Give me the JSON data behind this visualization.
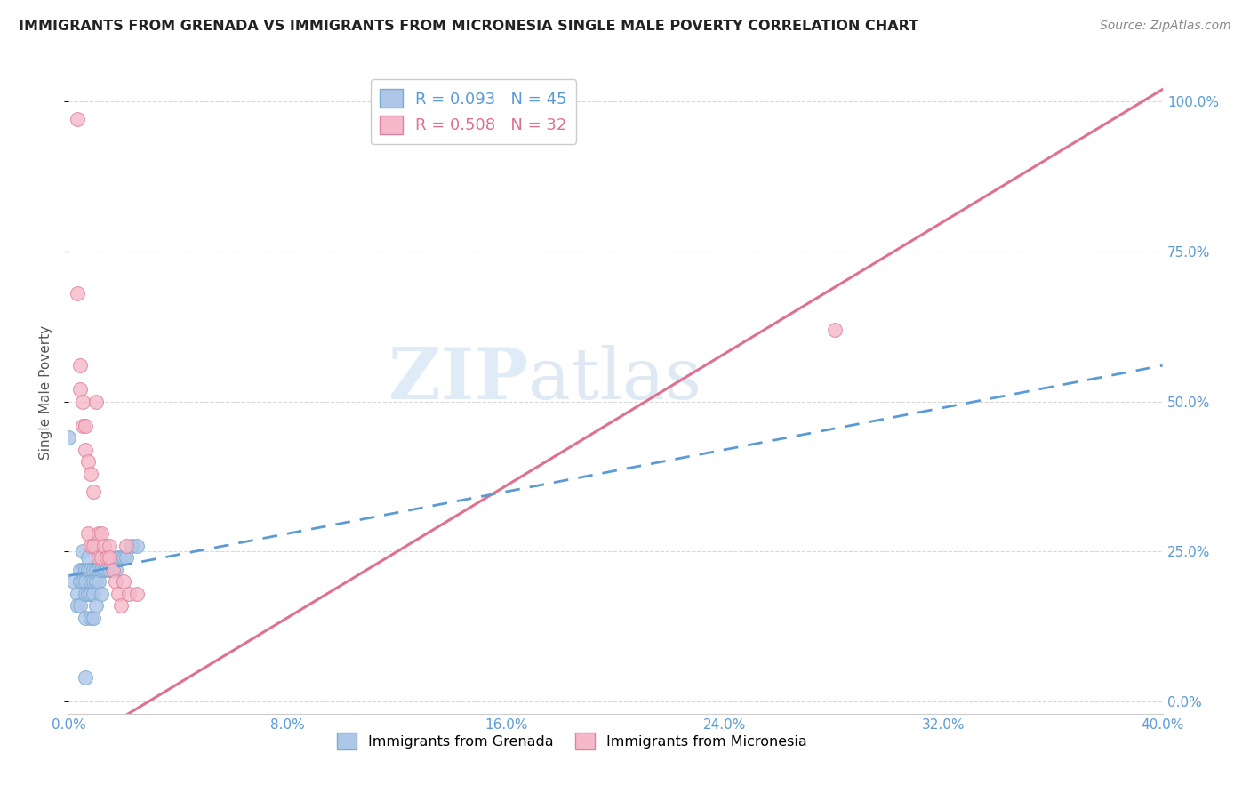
{
  "title": "IMMIGRANTS FROM GRENADA VS IMMIGRANTS FROM MICRONESIA SINGLE MALE POVERTY CORRELATION CHART",
  "source": "Source: ZipAtlas.com",
  "ylabel": "Single Male Poverty",
  "xlim": [
    0.0,
    0.4
  ],
  "ylim": [
    -0.02,
    1.05
  ],
  "xticks": [
    0.0,
    0.08,
    0.16,
    0.24,
    0.32,
    0.4
  ],
  "yticks_right": [
    0.0,
    0.25,
    0.5,
    0.75,
    1.0
  ],
  "watermark_zip": "ZIP",
  "watermark_atlas": "atlas",
  "grenada_color": "#aec6e8",
  "grenada_edge": "#7aaad0",
  "micronesia_color": "#f4b8c8",
  "micronesia_edge": "#e080a0",
  "legend_grenada_label": "Immigrants from Grenada",
  "legend_micronesia_label": "Immigrants from Micronesia",
  "R_grenada": 0.093,
  "N_grenada": 45,
  "R_micronesia": 0.508,
  "N_micronesia": 32,
  "grenada_line_color": "#5b9bd5",
  "micronesia_line_color": "#e07090",
  "grenada_line": [
    0.0,
    0.4,
    0.21,
    0.56
  ],
  "micronesia_line": [
    0.0,
    0.4,
    -0.08,
    1.02
  ],
  "background_color": "#ffffff",
  "grid_color": "#d8d8d8",
  "grenada_x": [
    0.0,
    0.002,
    0.003,
    0.003,
    0.004,
    0.004,
    0.004,
    0.005,
    0.005,
    0.005,
    0.006,
    0.006,
    0.006,
    0.006,
    0.007,
    0.007,
    0.007,
    0.008,
    0.008,
    0.008,
    0.008,
    0.009,
    0.009,
    0.009,
    0.009,
    0.01,
    0.01,
    0.01,
    0.011,
    0.011,
    0.012,
    0.012,
    0.013,
    0.014,
    0.015,
    0.015,
    0.016,
    0.017,
    0.018,
    0.019,
    0.02,
    0.021,
    0.023,
    0.025,
    0.006
  ],
  "grenada_y": [
    0.44,
    0.2,
    0.18,
    0.16,
    0.22,
    0.2,
    0.16,
    0.25,
    0.22,
    0.2,
    0.22,
    0.2,
    0.18,
    0.14,
    0.24,
    0.22,
    0.18,
    0.22,
    0.2,
    0.18,
    0.14,
    0.22,
    0.2,
    0.18,
    0.14,
    0.22,
    0.2,
    0.16,
    0.22,
    0.2,
    0.22,
    0.18,
    0.22,
    0.22,
    0.24,
    0.22,
    0.22,
    0.22,
    0.24,
    0.24,
    0.24,
    0.24,
    0.26,
    0.26,
    0.04
  ],
  "micronesia_x": [
    0.003,
    0.004,
    0.004,
    0.005,
    0.005,
    0.006,
    0.006,
    0.007,
    0.007,
    0.008,
    0.008,
    0.009,
    0.009,
    0.01,
    0.011,
    0.011,
    0.012,
    0.012,
    0.013,
    0.014,
    0.015,
    0.015,
    0.016,
    0.017,
    0.018,
    0.019,
    0.02,
    0.021,
    0.022,
    0.025,
    0.003,
    0.28
  ],
  "micronesia_y": [
    0.97,
    0.56,
    0.52,
    0.5,
    0.46,
    0.46,
    0.42,
    0.4,
    0.28,
    0.38,
    0.26,
    0.35,
    0.26,
    0.5,
    0.28,
    0.24,
    0.28,
    0.24,
    0.26,
    0.24,
    0.26,
    0.24,
    0.22,
    0.2,
    0.18,
    0.16,
    0.2,
    0.26,
    0.18,
    0.18,
    0.68,
    0.62
  ]
}
